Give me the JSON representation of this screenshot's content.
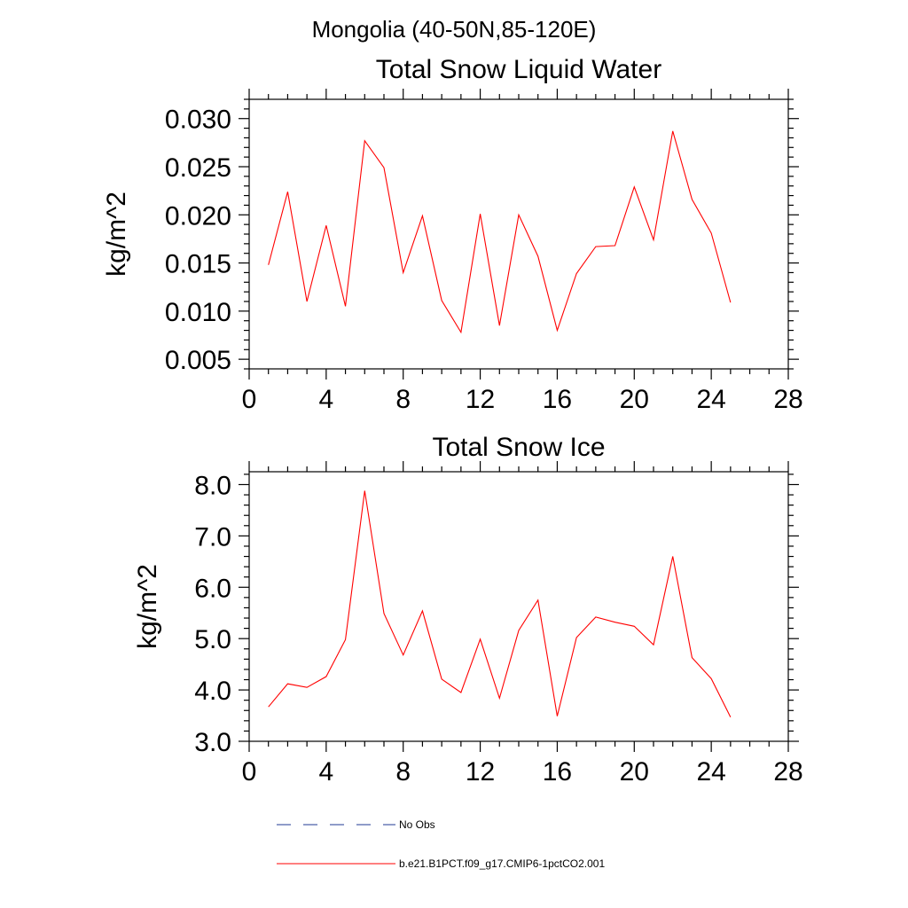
{
  "page": {
    "title": "Mongolia (40-50N,85-120E)"
  },
  "legend": {
    "obs_label": "No Obs",
    "obs_color": "#1f3a93",
    "model_label": "b.e21.B1PCT.f09_g17.CMIP6-1pctCO2.001",
    "model_color": "#ff0000"
  },
  "chart_data": [
    {
      "type": "line",
      "title": "Total Snow Liquid Water",
      "xlabel": "",
      "ylabel": "kg/m^2",
      "xlim": [
        0,
        28
      ],
      "ylim": [
        0.004,
        0.032
      ],
      "xticks": [
        "0",
        "4",
        "8",
        "12",
        "16",
        "20",
        "24",
        "28"
      ],
      "xtick_values": [
        0,
        4,
        8,
        12,
        16,
        20,
        24,
        28
      ],
      "yticks": [
        "0.005",
        "0.010",
        "0.015",
        "0.020",
        "0.025",
        "0.030"
      ],
      "ytick_values": [
        0.005,
        0.01,
        0.015,
        0.02,
        0.025,
        0.03
      ],
      "x": [
        1,
        2,
        3,
        4,
        5,
        6,
        7,
        8,
        9,
        10,
        11,
        12,
        13,
        14,
        15,
        16,
        17,
        18,
        19,
        20,
        21,
        22,
        23,
        24,
        25
      ],
      "series": [
        {
          "color": "#ff0000",
          "values": [
            0.0148,
            0.0224,
            0.011,
            0.0189,
            0.0105,
            0.0277,
            0.0249,
            0.014,
            0.0199,
            0.0111,
            0.0078,
            0.0201,
            0.0085,
            0.02,
            0.0157,
            0.008,
            0.0139,
            0.0167,
            0.0168,
            0.0229,
            0.0174,
            0.0287,
            0.0216,
            0.0181,
            0.0109
          ]
        }
      ]
    },
    {
      "type": "line",
      "title": "Total Snow Ice",
      "xlabel": "",
      "ylabel": "kg/m^2",
      "xlim": [
        0,
        28
      ],
      "ylim": [
        3.0,
        8.25
      ],
      "xticks": [
        "0",
        "4",
        "8",
        "12",
        "16",
        "20",
        "24",
        "28"
      ],
      "xtick_values": [
        0,
        4,
        8,
        12,
        16,
        20,
        24,
        28
      ],
      "yticks": [
        "3.0",
        "4.0",
        "5.0",
        "6.0",
        "7.0",
        "8.0"
      ],
      "ytick_values": [
        3.0,
        4.0,
        5.0,
        6.0,
        7.0,
        8.0
      ],
      "x": [
        1,
        2,
        3,
        4,
        5,
        6,
        7,
        8,
        9,
        10,
        11,
        12,
        13,
        14,
        15,
        16,
        17,
        18,
        19,
        20,
        21,
        22,
        23,
        24,
        25
      ],
      "series": [
        {
          "color": "#ff0000",
          "values": [
            3.67,
            4.12,
            4.05,
            4.26,
            4.98,
            7.88,
            5.49,
            4.68,
            5.54,
            4.21,
            3.95,
            4.99,
            3.84,
            5.16,
            5.75,
            3.49,
            5.02,
            5.42,
            5.32,
            5.24,
            4.88,
            6.6,
            4.63,
            4.22,
            3.47
          ]
        }
      ]
    }
  ]
}
